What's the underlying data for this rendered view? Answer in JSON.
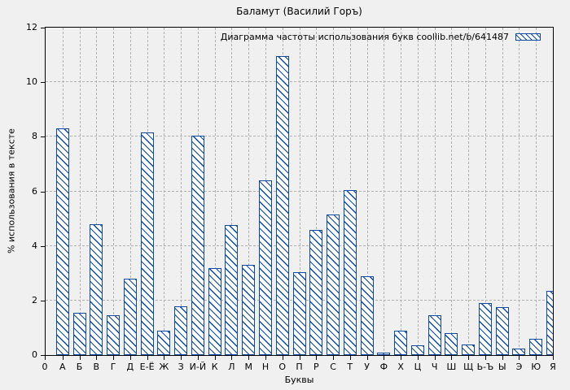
{
  "colors": {
    "bar_outline": "#0d4aa6",
    "bar_fill": "#ffffff",
    "background": "#f0f0f0",
    "grid": "#b0b0b0",
    "axis": "#000000",
    "text": "#000000"
  },
  "axes": {
    "origin_tick_label": "0",
    "y_tick_labels": [
      "0",
      "2",
      "4",
      "6",
      "8",
      "10",
      "12"
    ]
  },
  "legend": {
    "label": "Диаграмма частоты использования букв coollib.net/b/641487",
    "swatch": "blue-hatched-box"
  },
  "chart_data": {
    "type": "bar",
    "title": "Баламут (Василий Горъ)",
    "xlabel": "Буквы",
    "ylabel": "% использования в тексте",
    "ylim": [
      0,
      12
    ],
    "y_tick_step": 2,
    "grid": true,
    "legend_position": "top-right-inside",
    "legend_label": "Диаграмма частоты использования букв coollib.net/b/641487",
    "categories": [
      "А",
      "Б",
      "В",
      "Г",
      "Д",
      "Е-Ё",
      "Ж",
      "З",
      "И-Й",
      "К",
      "Л",
      "М",
      "Н",
      "О",
      "П",
      "Р",
      "С",
      "Т",
      "У",
      "Ф",
      "Х",
      "Ц",
      "Ч",
      "Ш",
      "Щ",
      "Ь-Ъ",
      "Ы",
      "Э",
      "Ю",
      "Я"
    ],
    "values": [
      8.3,
      1.55,
      4.8,
      1.45,
      2.8,
      8.15,
      0.9,
      1.8,
      8.05,
      3.2,
      4.75,
      3.3,
      6.4,
      10.95,
      3.05,
      4.6,
      5.15,
      6.05,
      2.9,
      0.1,
      0.9,
      0.35,
      1.45,
      0.8,
      0.4,
      1.9,
      1.75,
      0.25,
      0.6,
      2.35
    ]
  }
}
